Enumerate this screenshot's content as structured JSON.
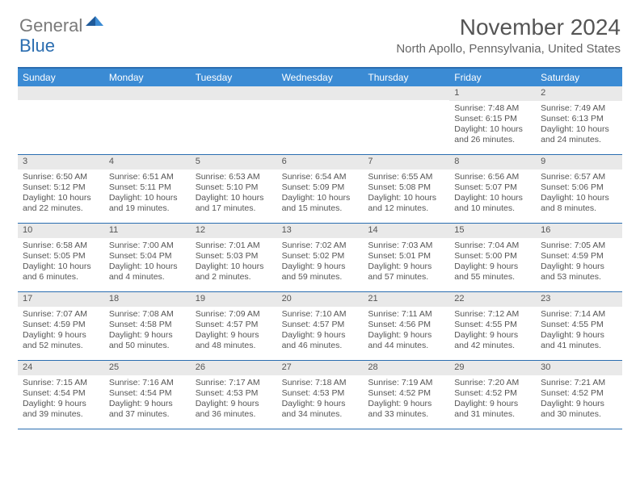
{
  "logo": {
    "gray": "General",
    "blue": "Blue"
  },
  "title": "November 2024",
  "location": "North Apollo, Pennsylvania, United States",
  "colors": {
    "header_bar": "#3b8bd4",
    "border": "#2a6db0",
    "daynum_bg": "#e9e9e9",
    "text": "#555555",
    "logo_gray": "#7a7a7a",
    "logo_blue": "#2a6db0"
  },
  "dow": [
    "Sunday",
    "Monday",
    "Tuesday",
    "Wednesday",
    "Thursday",
    "Friday",
    "Saturday"
  ],
  "weeks": [
    [
      {
        "n": "",
        "sr": "",
        "ss": "",
        "dl": ""
      },
      {
        "n": "",
        "sr": "",
        "ss": "",
        "dl": ""
      },
      {
        "n": "",
        "sr": "",
        "ss": "",
        "dl": ""
      },
      {
        "n": "",
        "sr": "",
        "ss": "",
        "dl": ""
      },
      {
        "n": "",
        "sr": "",
        "ss": "",
        "dl": ""
      },
      {
        "n": "1",
        "sr": "Sunrise: 7:48 AM",
        "ss": "Sunset: 6:15 PM",
        "dl": "Daylight: 10 hours and 26 minutes."
      },
      {
        "n": "2",
        "sr": "Sunrise: 7:49 AM",
        "ss": "Sunset: 6:13 PM",
        "dl": "Daylight: 10 hours and 24 minutes."
      }
    ],
    [
      {
        "n": "3",
        "sr": "Sunrise: 6:50 AM",
        "ss": "Sunset: 5:12 PM",
        "dl": "Daylight: 10 hours and 22 minutes."
      },
      {
        "n": "4",
        "sr": "Sunrise: 6:51 AM",
        "ss": "Sunset: 5:11 PM",
        "dl": "Daylight: 10 hours and 19 minutes."
      },
      {
        "n": "5",
        "sr": "Sunrise: 6:53 AM",
        "ss": "Sunset: 5:10 PM",
        "dl": "Daylight: 10 hours and 17 minutes."
      },
      {
        "n": "6",
        "sr": "Sunrise: 6:54 AM",
        "ss": "Sunset: 5:09 PM",
        "dl": "Daylight: 10 hours and 15 minutes."
      },
      {
        "n": "7",
        "sr": "Sunrise: 6:55 AM",
        "ss": "Sunset: 5:08 PM",
        "dl": "Daylight: 10 hours and 12 minutes."
      },
      {
        "n": "8",
        "sr": "Sunrise: 6:56 AM",
        "ss": "Sunset: 5:07 PM",
        "dl": "Daylight: 10 hours and 10 minutes."
      },
      {
        "n": "9",
        "sr": "Sunrise: 6:57 AM",
        "ss": "Sunset: 5:06 PM",
        "dl": "Daylight: 10 hours and 8 minutes."
      }
    ],
    [
      {
        "n": "10",
        "sr": "Sunrise: 6:58 AM",
        "ss": "Sunset: 5:05 PM",
        "dl": "Daylight: 10 hours and 6 minutes."
      },
      {
        "n": "11",
        "sr": "Sunrise: 7:00 AM",
        "ss": "Sunset: 5:04 PM",
        "dl": "Daylight: 10 hours and 4 minutes."
      },
      {
        "n": "12",
        "sr": "Sunrise: 7:01 AM",
        "ss": "Sunset: 5:03 PM",
        "dl": "Daylight: 10 hours and 2 minutes."
      },
      {
        "n": "13",
        "sr": "Sunrise: 7:02 AM",
        "ss": "Sunset: 5:02 PM",
        "dl": "Daylight: 9 hours and 59 minutes."
      },
      {
        "n": "14",
        "sr": "Sunrise: 7:03 AM",
        "ss": "Sunset: 5:01 PM",
        "dl": "Daylight: 9 hours and 57 minutes."
      },
      {
        "n": "15",
        "sr": "Sunrise: 7:04 AM",
        "ss": "Sunset: 5:00 PM",
        "dl": "Daylight: 9 hours and 55 minutes."
      },
      {
        "n": "16",
        "sr": "Sunrise: 7:05 AM",
        "ss": "Sunset: 4:59 PM",
        "dl": "Daylight: 9 hours and 53 minutes."
      }
    ],
    [
      {
        "n": "17",
        "sr": "Sunrise: 7:07 AM",
        "ss": "Sunset: 4:59 PM",
        "dl": "Daylight: 9 hours and 52 minutes."
      },
      {
        "n": "18",
        "sr": "Sunrise: 7:08 AM",
        "ss": "Sunset: 4:58 PM",
        "dl": "Daylight: 9 hours and 50 minutes."
      },
      {
        "n": "19",
        "sr": "Sunrise: 7:09 AM",
        "ss": "Sunset: 4:57 PM",
        "dl": "Daylight: 9 hours and 48 minutes."
      },
      {
        "n": "20",
        "sr": "Sunrise: 7:10 AM",
        "ss": "Sunset: 4:57 PM",
        "dl": "Daylight: 9 hours and 46 minutes."
      },
      {
        "n": "21",
        "sr": "Sunrise: 7:11 AM",
        "ss": "Sunset: 4:56 PM",
        "dl": "Daylight: 9 hours and 44 minutes."
      },
      {
        "n": "22",
        "sr": "Sunrise: 7:12 AM",
        "ss": "Sunset: 4:55 PM",
        "dl": "Daylight: 9 hours and 42 minutes."
      },
      {
        "n": "23",
        "sr": "Sunrise: 7:14 AM",
        "ss": "Sunset: 4:55 PM",
        "dl": "Daylight: 9 hours and 41 minutes."
      }
    ],
    [
      {
        "n": "24",
        "sr": "Sunrise: 7:15 AM",
        "ss": "Sunset: 4:54 PM",
        "dl": "Daylight: 9 hours and 39 minutes."
      },
      {
        "n": "25",
        "sr": "Sunrise: 7:16 AM",
        "ss": "Sunset: 4:54 PM",
        "dl": "Daylight: 9 hours and 37 minutes."
      },
      {
        "n": "26",
        "sr": "Sunrise: 7:17 AM",
        "ss": "Sunset: 4:53 PM",
        "dl": "Daylight: 9 hours and 36 minutes."
      },
      {
        "n": "27",
        "sr": "Sunrise: 7:18 AM",
        "ss": "Sunset: 4:53 PM",
        "dl": "Daylight: 9 hours and 34 minutes."
      },
      {
        "n": "28",
        "sr": "Sunrise: 7:19 AM",
        "ss": "Sunset: 4:52 PM",
        "dl": "Daylight: 9 hours and 33 minutes."
      },
      {
        "n": "29",
        "sr": "Sunrise: 7:20 AM",
        "ss": "Sunset: 4:52 PM",
        "dl": "Daylight: 9 hours and 31 minutes."
      },
      {
        "n": "30",
        "sr": "Sunrise: 7:21 AM",
        "ss": "Sunset: 4:52 PM",
        "dl": "Daylight: 9 hours and 30 minutes."
      }
    ]
  ]
}
